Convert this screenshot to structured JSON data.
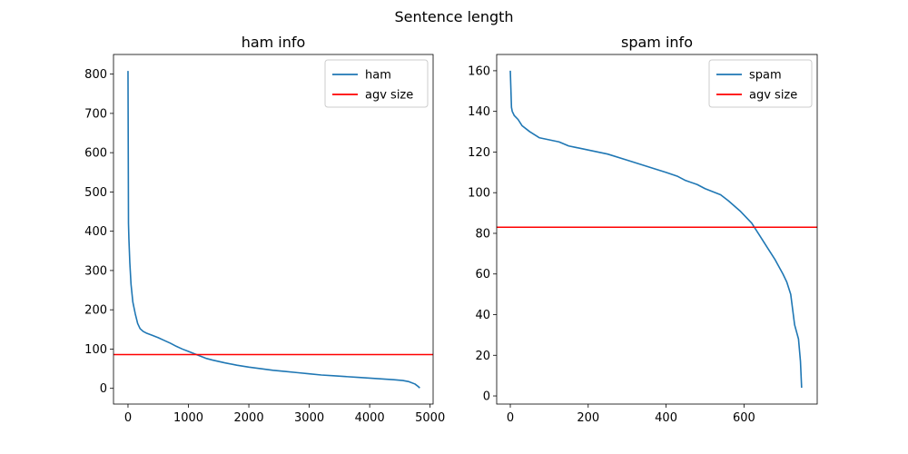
{
  "figure": {
    "suptitle": "Sentence length"
  },
  "chart_data": [
    {
      "type": "line",
      "title": "ham info",
      "xlabel": "",
      "ylabel": "",
      "xlim": [
        -240,
        5050
      ],
      "ylim": [
        -40,
        850
      ],
      "xticks": [
        0,
        1000,
        2000,
        3000,
        4000,
        5000
      ],
      "yticks": [
        0,
        100,
        200,
        300,
        400,
        500,
        600,
        700,
        800
      ],
      "grid": false,
      "legend_position": "top-right",
      "series": [
        {
          "name": "ham",
          "color": "#1f77b4",
          "points": [
            [
              0,
              808
            ],
            [
              8,
              420
            ],
            [
              15,
              380
            ],
            [
              30,
              320
            ],
            [
              50,
              265
            ],
            [
              80,
              220
            ],
            [
              120,
              190
            ],
            [
              160,
              165
            ],
            [
              200,
              152
            ],
            [
              250,
              145
            ],
            [
              300,
              141
            ],
            [
              400,
              135
            ],
            [
              500,
              129
            ],
            [
              600,
              122
            ],
            [
              700,
              115
            ],
            [
              800,
              107
            ],
            [
              900,
              100
            ],
            [
              1000,
              94
            ],
            [
              1100,
              88
            ],
            [
              1200,
              82
            ],
            [
              1300,
              76
            ],
            [
              1400,
              72
            ],
            [
              1600,
              65
            ],
            [
              1800,
              59
            ],
            [
              2000,
              54
            ],
            [
              2200,
              50
            ],
            [
              2400,
              46
            ],
            [
              2600,
              43
            ],
            [
              2800,
              40
            ],
            [
              3000,
              37
            ],
            [
              3200,
              34
            ],
            [
              3400,
              32
            ],
            [
              3600,
              30
            ],
            [
              3800,
              28
            ],
            [
              4000,
              26
            ],
            [
              4200,
              24
            ],
            [
              4400,
              22
            ],
            [
              4550,
              20
            ],
            [
              4650,
              17
            ],
            [
              4750,
              11
            ],
            [
              4800,
              5
            ],
            [
              4830,
              1
            ]
          ]
        },
        {
          "name": "agv size",
          "color": "#ff0000",
          "hline": 86
        }
      ]
    },
    {
      "type": "line",
      "title": "spam info",
      "xlabel": "",
      "ylabel": "",
      "xlim": [
        -35,
        788
      ],
      "ylim": [
        -4,
        168
      ],
      "xticks": [
        0,
        200,
        400,
        600
      ],
      "yticks": [
        0,
        20,
        40,
        60,
        80,
        100,
        120,
        140,
        160
      ],
      "grid": false,
      "legend_position": "top-right",
      "series": [
        {
          "name": "spam",
          "color": "#1f77b4",
          "points": [
            [
              0,
              160
            ],
            [
              3,
              142
            ],
            [
              5,
              140
            ],
            [
              10,
              138
            ],
            [
              20,
              136
            ],
            [
              30,
              133
            ],
            [
              50,
              130
            ],
            [
              75,
              127
            ],
            [
              100,
              126
            ],
            [
              125,
              125
            ],
            [
              150,
              123
            ],
            [
              175,
              122
            ],
            [
              200,
              121
            ],
            [
              250,
              119
            ],
            [
              300,
              116
            ],
            [
              350,
              113
            ],
            [
              400,
              110
            ],
            [
              430,
              108
            ],
            [
              450,
              106
            ],
            [
              480,
              104
            ],
            [
              500,
              102
            ],
            [
              540,
              99
            ],
            [
              560,
              96
            ],
            [
              590,
              91
            ],
            [
              610,
              87
            ],
            [
              620,
              85
            ],
            [
              640,
              79
            ],
            [
              660,
              73
            ],
            [
              680,
              67
            ],
            [
              700,
              60
            ],
            [
              710,
              56
            ],
            [
              720,
              50
            ],
            [
              730,
              35
            ],
            [
              740,
              28
            ],
            [
              745,
              17
            ],
            [
              748,
              4
            ]
          ]
        },
        {
          "name": "agv size",
          "color": "#ff0000",
          "hline": 83
        }
      ]
    }
  ]
}
